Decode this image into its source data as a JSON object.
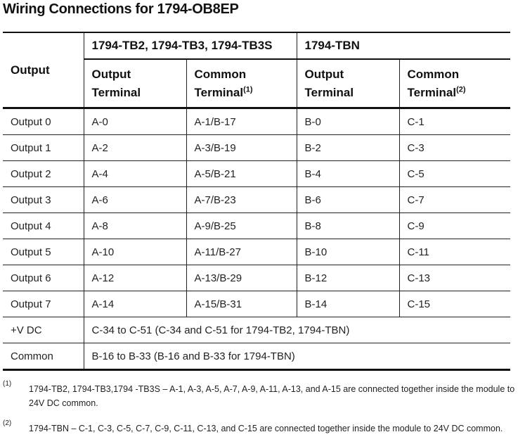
{
  "title": "Wiring Connections for 1794-OB8EP",
  "table": {
    "output_header": "Output",
    "groups": [
      {
        "label": "1794-TB2, 1794-TB3, 1794-TB3S"
      },
      {
        "label": "1794-TBN"
      }
    ],
    "subheaders": [
      {
        "line1": "Output",
        "line2": "Terminal",
        "ref": ""
      },
      {
        "line1": "Common",
        "line2": "Terminal",
        "ref": "(1)"
      },
      {
        "line1": "Output",
        "line2": "Terminal",
        "ref": ""
      },
      {
        "line1": "Common",
        "line2": "Terminal",
        "ref": "(2)"
      }
    ],
    "rows": [
      {
        "output": "Output 0",
        "c1": "A-0",
        "c2": "A-1/B-17",
        "c3": "B-0",
        "c4": "C-1"
      },
      {
        "output": "Output 1",
        "c1": "A-2",
        "c2": "A-3/B-19",
        "c3": "B-2",
        "c4": "C-3"
      },
      {
        "output": "Output 2",
        "c1": "A-4",
        "c2": "A-5/B-21",
        "c3": "B-4",
        "c4": "C-5"
      },
      {
        "output": "Output 3",
        "c1": "A-6",
        "c2": "A-7/B-23",
        "c3": "B-6",
        "c4": "C-7"
      },
      {
        "output": "Output 4",
        "c1": "A-8",
        "c2": "A-9/B-25",
        "c3": "B-8",
        "c4": "C-9"
      },
      {
        "output": "Output 5",
        "c1": "A-10",
        "c2": "A-11/B-27",
        "c3": "B-10",
        "c4": "C-11"
      },
      {
        "output": "Output 6",
        "c1": "A-12",
        "c2": "A-13/B-29",
        "c3": "B-12",
        "c4": "C-13"
      },
      {
        "output": "Output 7",
        "c1": "A-14",
        "c2": "A-15/B-31",
        "c3": "B-14",
        "c4": "C-15"
      }
    ],
    "span_rows": [
      {
        "output": "+V DC",
        "value": "C-34 to C-51 (C-34 and C-51 for 1794-TB2, 1794-TBN)"
      },
      {
        "output": "Common",
        "value": "B-16 to B-33 (B-16 and B-33 for 1794-TBN)"
      }
    ]
  },
  "footnotes": [
    {
      "mark": "(1)",
      "text": "1794-TB2, 1794-TB3,1794 -TB3S – A-1, A-3, A-5, A-7, A-9, A-11, A-13, and A-15 are connected together inside the module to 24V DC common."
    },
    {
      "mark": "(2)",
      "text": "1794-TBN – C-1, C-3, C-5, C-7, C-9, C-11, C-13, and C-15 are connected together inside the module to 24V DC common."
    }
  ]
}
